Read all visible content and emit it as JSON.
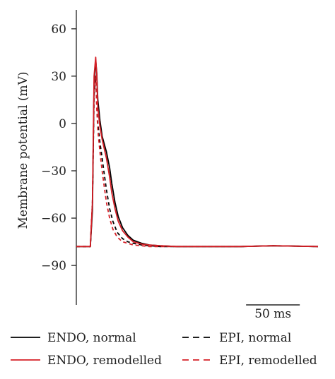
{
  "chart_data": {
    "type": "line",
    "title": "",
    "xlabel": "",
    "ylabel": "Membrane potential (mV)",
    "ylim": [
      -115,
      72
    ],
    "xlim": [
      -13,
      212
    ],
    "yticks": [
      60,
      30,
      0,
      -30,
      -60,
      -90
    ],
    "ytick_labels": [
      "60",
      "30",
      "0",
      "−30",
      "−60",
      "−90"
    ],
    "grid": false,
    "legend_position": "bottom",
    "scale_bar": {
      "label": "50 ms",
      "length_ms": 50,
      "x_start_ms": 145
    },
    "series": [
      {
        "name": "ENDO, normal",
        "color": "#000000",
        "dash": "solid",
        "x": [
          -13,
          0,
          2,
          3.5,
          5,
          6,
          7,
          9,
          11,
          13,
          15,
          18,
          20,
          23,
          26,
          30,
          35,
          40,
          48,
          55,
          65,
          80,
          100,
          140,
          170,
          212
        ],
        "y": [
          -78,
          -78,
          -55,
          25,
          40,
          32,
          15,
          2,
          -8,
          -13,
          -18,
          -28,
          -38,
          -50,
          -59,
          -66,
          -71,
          -74,
          -76,
          -77,
          -77.5,
          -78,
          -78,
          -78,
          -77.5,
          -78
        ]
      },
      {
        "name": "ENDO, remodelled",
        "color": "#d62027",
        "dash": "solid",
        "x": [
          -13,
          0,
          2,
          3.5,
          5,
          6,
          7,
          9,
          11,
          13,
          15,
          18,
          20,
          23,
          26,
          30,
          35,
          40,
          48,
          55,
          65,
          80,
          100,
          140,
          170,
          212
        ],
        "y": [
          -78,
          -78,
          -50,
          30,
          42,
          30,
          10,
          -2,
          -10,
          -16,
          -22,
          -34,
          -44,
          -54,
          -62,
          -68,
          -72,
          -75,
          -76.5,
          -77,
          -77.5,
          -78,
          -78,
          -78,
          -77.5,
          -78
        ]
      },
      {
        "name": "EPI, normal",
        "color": "#000000",
        "dash": "dashed",
        "x": [
          -13,
          0,
          2,
          3.5,
          5,
          6,
          7,
          9,
          11,
          13,
          15,
          18,
          21,
          25,
          30,
          35,
          40,
          48,
          55,
          65,
          80,
          100,
          140,
          170,
          212
        ],
        "y": [
          -78,
          -78,
          -50,
          18,
          28,
          12,
          0,
          -12,
          -22,
          -32,
          -42,
          -54,
          -62,
          -69,
          -73,
          -75,
          -76,
          -77,
          -77.5,
          -78,
          -78,
          -78,
          -78,
          -77.5,
          -78
        ]
      },
      {
        "name": "EPI, remodelled",
        "color": "#d62027",
        "dash": "dashed",
        "x": [
          -13,
          0,
          2,
          3.5,
          5,
          6,
          7,
          9,
          11,
          13,
          15,
          18,
          21,
          25,
          30,
          35,
          40,
          48,
          55,
          65,
          80,
          100,
          140,
          170,
          212
        ],
        "y": [
          -78,
          -78,
          -50,
          20,
          30,
          10,
          -4,
          -18,
          -30,
          -40,
          -50,
          -60,
          -67,
          -72,
          -75,
          -76,
          -77,
          -77.5,
          -78,
          -78,
          -78,
          -78,
          -78,
          -77.5,
          -78
        ]
      }
    ]
  },
  "legend": {
    "items": [
      {
        "label": "ENDO, normal",
        "color": "#000000",
        "dash": "solid"
      },
      {
        "label": "ENDO, remodelled",
        "color": "#d62027",
        "dash": "solid"
      },
      {
        "label": "EPI, normal",
        "color": "#000000",
        "dash": "dashed"
      },
      {
        "label": "EPI, remodelled",
        "color": "#d62027",
        "dash": "dashed"
      }
    ]
  }
}
